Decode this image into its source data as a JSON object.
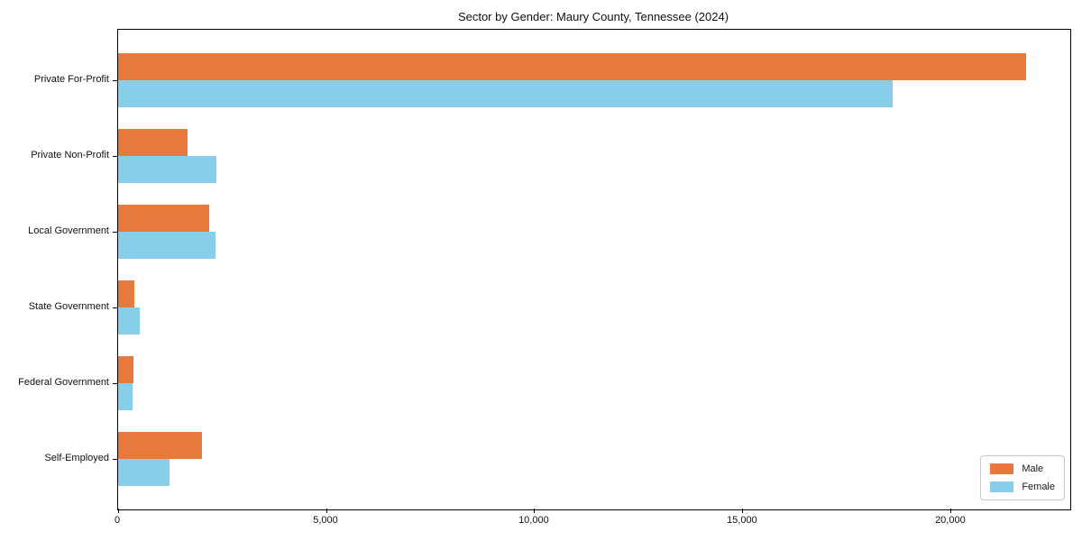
{
  "page": {
    "background": "#ffffff"
  },
  "chart_data": {
    "type": "bar",
    "orientation": "horizontal",
    "title": "Sector by Gender: Maury County, Tennessee (2024)",
    "categories": [
      "Private For-Profit",
      "Private Non-Profit",
      "Local Government",
      "State Government",
      "Federal Government",
      "Self-Employed"
    ],
    "series": [
      {
        "name": "Male",
        "color": "#E8793D",
        "values": [
          21800,
          1670,
          2190,
          390,
          370,
          2010
        ]
      },
      {
        "name": "Female",
        "color": "#87CEEB",
        "values": [
          18600,
          2360,
          2340,
          520,
          350,
          1230
        ]
      }
    ],
    "xlabel": "",
    "ylabel": "",
    "xlim": [
      0,
      22860
    ],
    "xticks": [
      0,
      5000,
      10000,
      15000,
      20000
    ],
    "xtick_labels": [
      "0",
      "5,000",
      "10,000",
      "15,000",
      "20,000"
    ],
    "grid": false,
    "legend": {
      "position": "lower right",
      "items": [
        "Male",
        "Female"
      ]
    }
  },
  "colors": {
    "spine": "#000000",
    "text": "#1a1a1a",
    "legend_border": "#c8c8c8"
  }
}
